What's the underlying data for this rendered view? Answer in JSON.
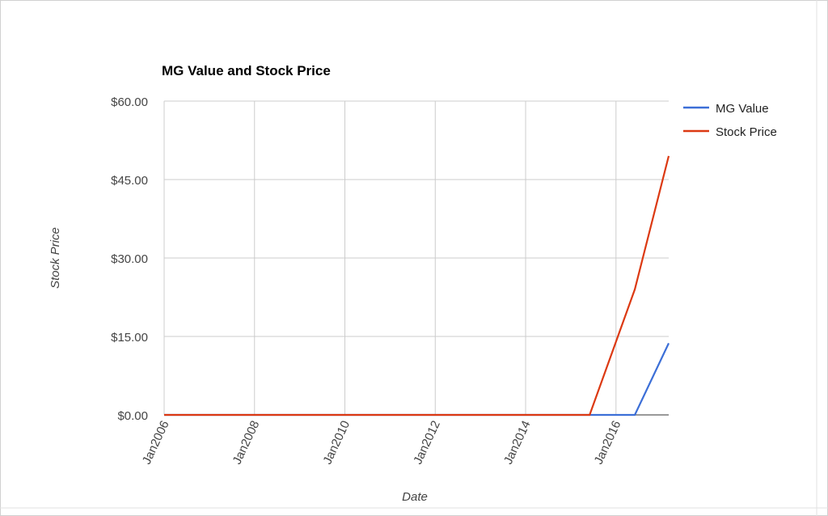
{
  "chart_data": {
    "type": "line",
    "title": "MG Value and Stock Price",
    "x_axis_label": "Date",
    "y_axis_label": "Stock Price",
    "x": [
      "2006-01",
      "2015-06",
      "2016-01",
      "2016-06",
      "2017-03"
    ],
    "series": [
      {
        "name": "MG Value",
        "color": "#3c6fd7",
        "values": [
          0,
          0,
          0,
          0,
          13.7
        ]
      },
      {
        "name": "Stock Price",
        "color": "#dc3912",
        "values": [
          0,
          0,
          14,
          24,
          49.5
        ]
      }
    ],
    "xlim": [
      "2006-01",
      "2017-03"
    ],
    "xticks": [
      {
        "value": "2006-01",
        "label": "Jan2006"
      },
      {
        "value": "2008-01",
        "label": "Jan2008"
      },
      {
        "value": "2010-01",
        "label": "Jan2010"
      },
      {
        "value": "2012-01",
        "label": "Jan2012"
      },
      {
        "value": "2014-01",
        "label": "Jan2014"
      },
      {
        "value": "2016-01",
        "label": "Jan2016"
      }
    ],
    "ylim": [
      0,
      60
    ],
    "yticks": [
      {
        "value": 0,
        "label": "$0.00"
      },
      {
        "value": 15,
        "label": "$15.00"
      },
      {
        "value": 30,
        "label": "$30.00"
      },
      {
        "value": 45,
        "label": "$45.00"
      },
      {
        "value": 60,
        "label": "$60.00"
      }
    ],
    "grid": true,
    "legend": "right"
  }
}
